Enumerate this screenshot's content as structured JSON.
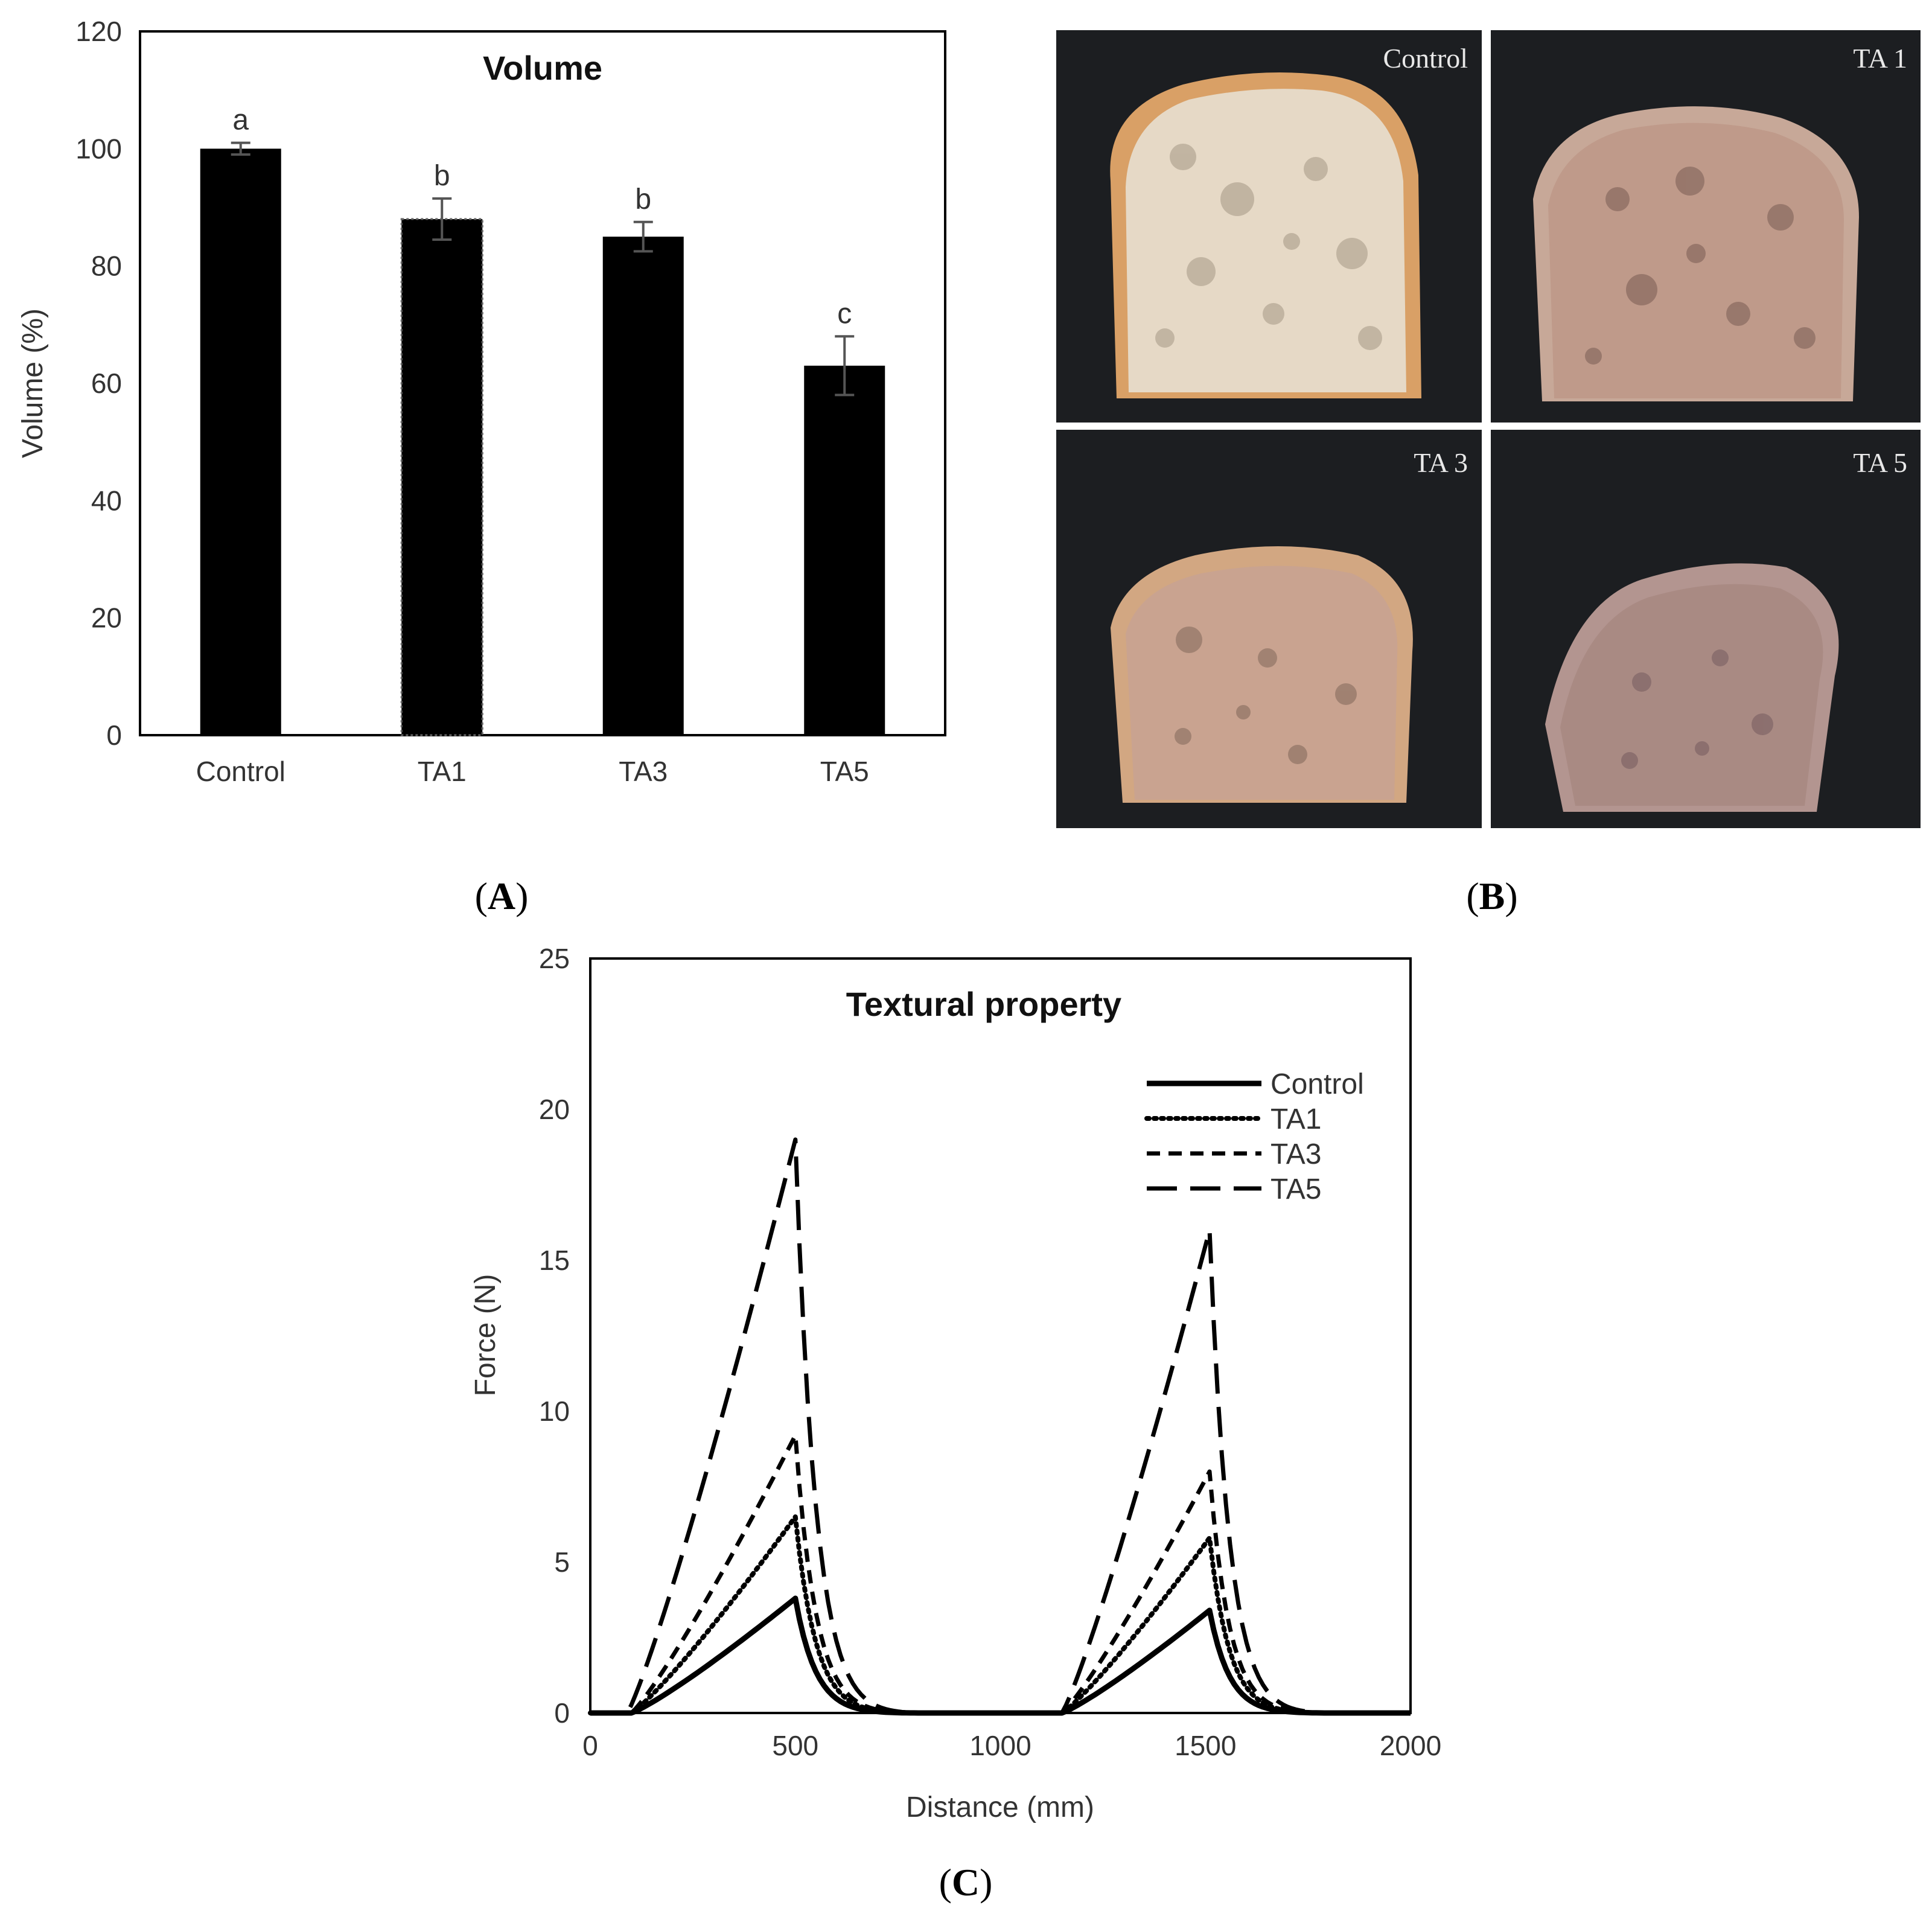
{
  "panels": {
    "a": "(A)",
    "b": "(B)",
    "c": "(C)",
    "a_letter": "A",
    "b_letter": "B",
    "c_letter": "C"
  },
  "photos": {
    "labels": [
      "Control",
      "TA 1",
      "TA 3",
      "TA 5"
    ],
    "description_colors": {
      "background": "#1c1e21",
      "control_crumb": "#e6d9c6",
      "control_crust": "#d9a066",
      "ta1_crumb": "#bf9a8a",
      "ta3_crumb": "#c9a390",
      "ta5_crumb": "#a98a83"
    }
  },
  "chart_data": [
    {
      "type": "bar",
      "title": "Volume",
      "xlabel": "",
      "ylabel": "Volume (%)",
      "categories": [
        "Control",
        "TA1",
        "TA3",
        "TA5"
      ],
      "values": [
        100,
        88,
        85,
        63
      ],
      "errors": [
        1,
        3.5,
        2.5,
        5
      ],
      "significance": [
        "a",
        "b",
        "b",
        "c"
      ],
      "ylim": [
        0,
        120
      ],
      "yticks": [
        0,
        20,
        40,
        60,
        80,
        100,
        120
      ],
      "bar_color": "#000000"
    },
    {
      "type": "line",
      "title": "Textural property",
      "xlabel": "Distance (mm)",
      "ylabel": "Force (N)",
      "xlim": [
        0,
        2000
      ],
      "ylim": [
        0,
        25
      ],
      "xticks": [
        0,
        500,
        1000,
        1500,
        2000
      ],
      "yticks": [
        0,
        5,
        10,
        15,
        20,
        25
      ],
      "legend_position": "top-right",
      "series": [
        {
          "name": "Control",
          "style": "solid",
          "start1": 100,
          "peak1": 3.8,
          "peak2": 3.4
        },
        {
          "name": "TA1",
          "style": "dotted",
          "start1": 100,
          "peak1": 6.5,
          "peak2": 5.8
        },
        {
          "name": "TA3",
          "style": "dashed",
          "start1": 100,
          "peak1": 9.2,
          "peak2": 8.0
        },
        {
          "name": "TA5",
          "style": "longdash",
          "start1": 90,
          "peak1": 19.0,
          "peak2": 16.0
        }
      ],
      "cycle1": {
        "start": 100,
        "peak_x": 500,
        "end": 800
      },
      "cycle2": {
        "start": 1150,
        "peak_x": 1510,
        "end": 1800
      }
    }
  ]
}
